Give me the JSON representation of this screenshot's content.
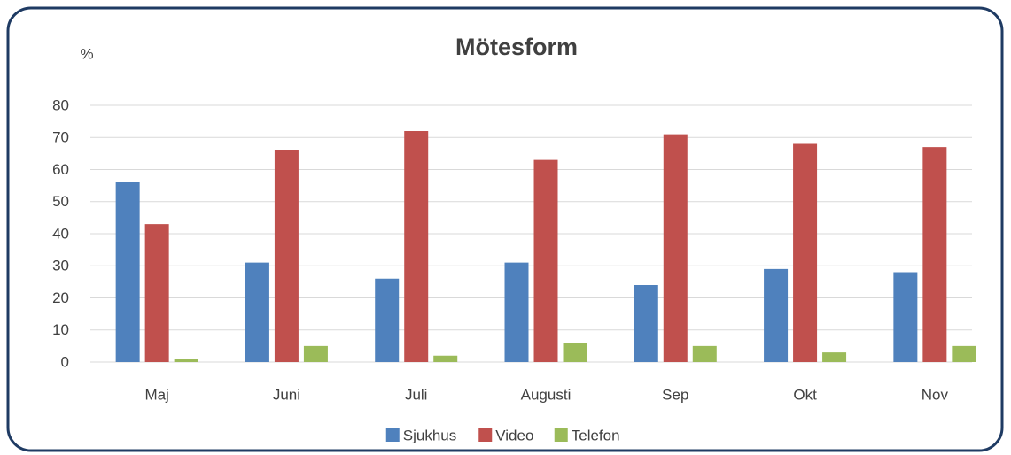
{
  "chart_data": {
    "type": "bar",
    "title": "Mötesform",
    "y_label": "%",
    "categories": [
      "Maj",
      "Juni",
      "Juli",
      "Augusti",
      "Sep",
      "Okt",
      "Nov"
    ],
    "series": [
      {
        "name": "Sjukhus",
        "color": "#4f81bd",
        "values": [
          56,
          31,
          26,
          31,
          24,
          29,
          28
        ]
      },
      {
        "name": "Video",
        "color": "#c0504d",
        "values": [
          43,
          66,
          72,
          63,
          71,
          68,
          67
        ]
      },
      {
        "name": "Telefon",
        "color": "#9bbb59",
        "values": [
          1,
          5,
          2,
          6,
          5,
          3,
          5
        ]
      }
    ],
    "ylim": [
      0,
      80
    ],
    "yticks": [
      0,
      10,
      20,
      30,
      40,
      50,
      60,
      70,
      80
    ],
    "grid": true,
    "legend": "bottom"
  }
}
